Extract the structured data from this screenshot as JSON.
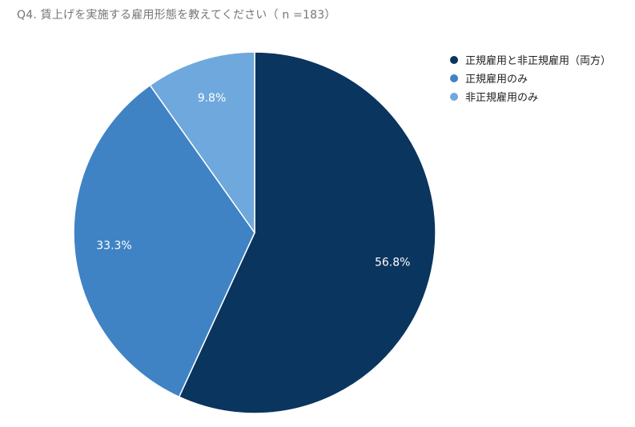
{
  "chart_data": {
    "type": "pie",
    "title": "Q4. 賃上げを実施する雇用形態を教えてください（ n =183）",
    "categories": [
      "正規雇用と非正規雇用（両方）",
      "正規雇用のみ",
      "非正規雇用のみ"
    ],
    "values": [
      56.8,
      33.3,
      9.8
    ],
    "value_labels": [
      "56.8%",
      "33.3%",
      "9.8%"
    ],
    "colors": [
      "#0a355f",
      "#3f83c5",
      "#6fa8dc"
    ],
    "legend_position": "right",
    "start_angle": "top (12 o'clock)",
    "direction": "clockwise"
  }
}
